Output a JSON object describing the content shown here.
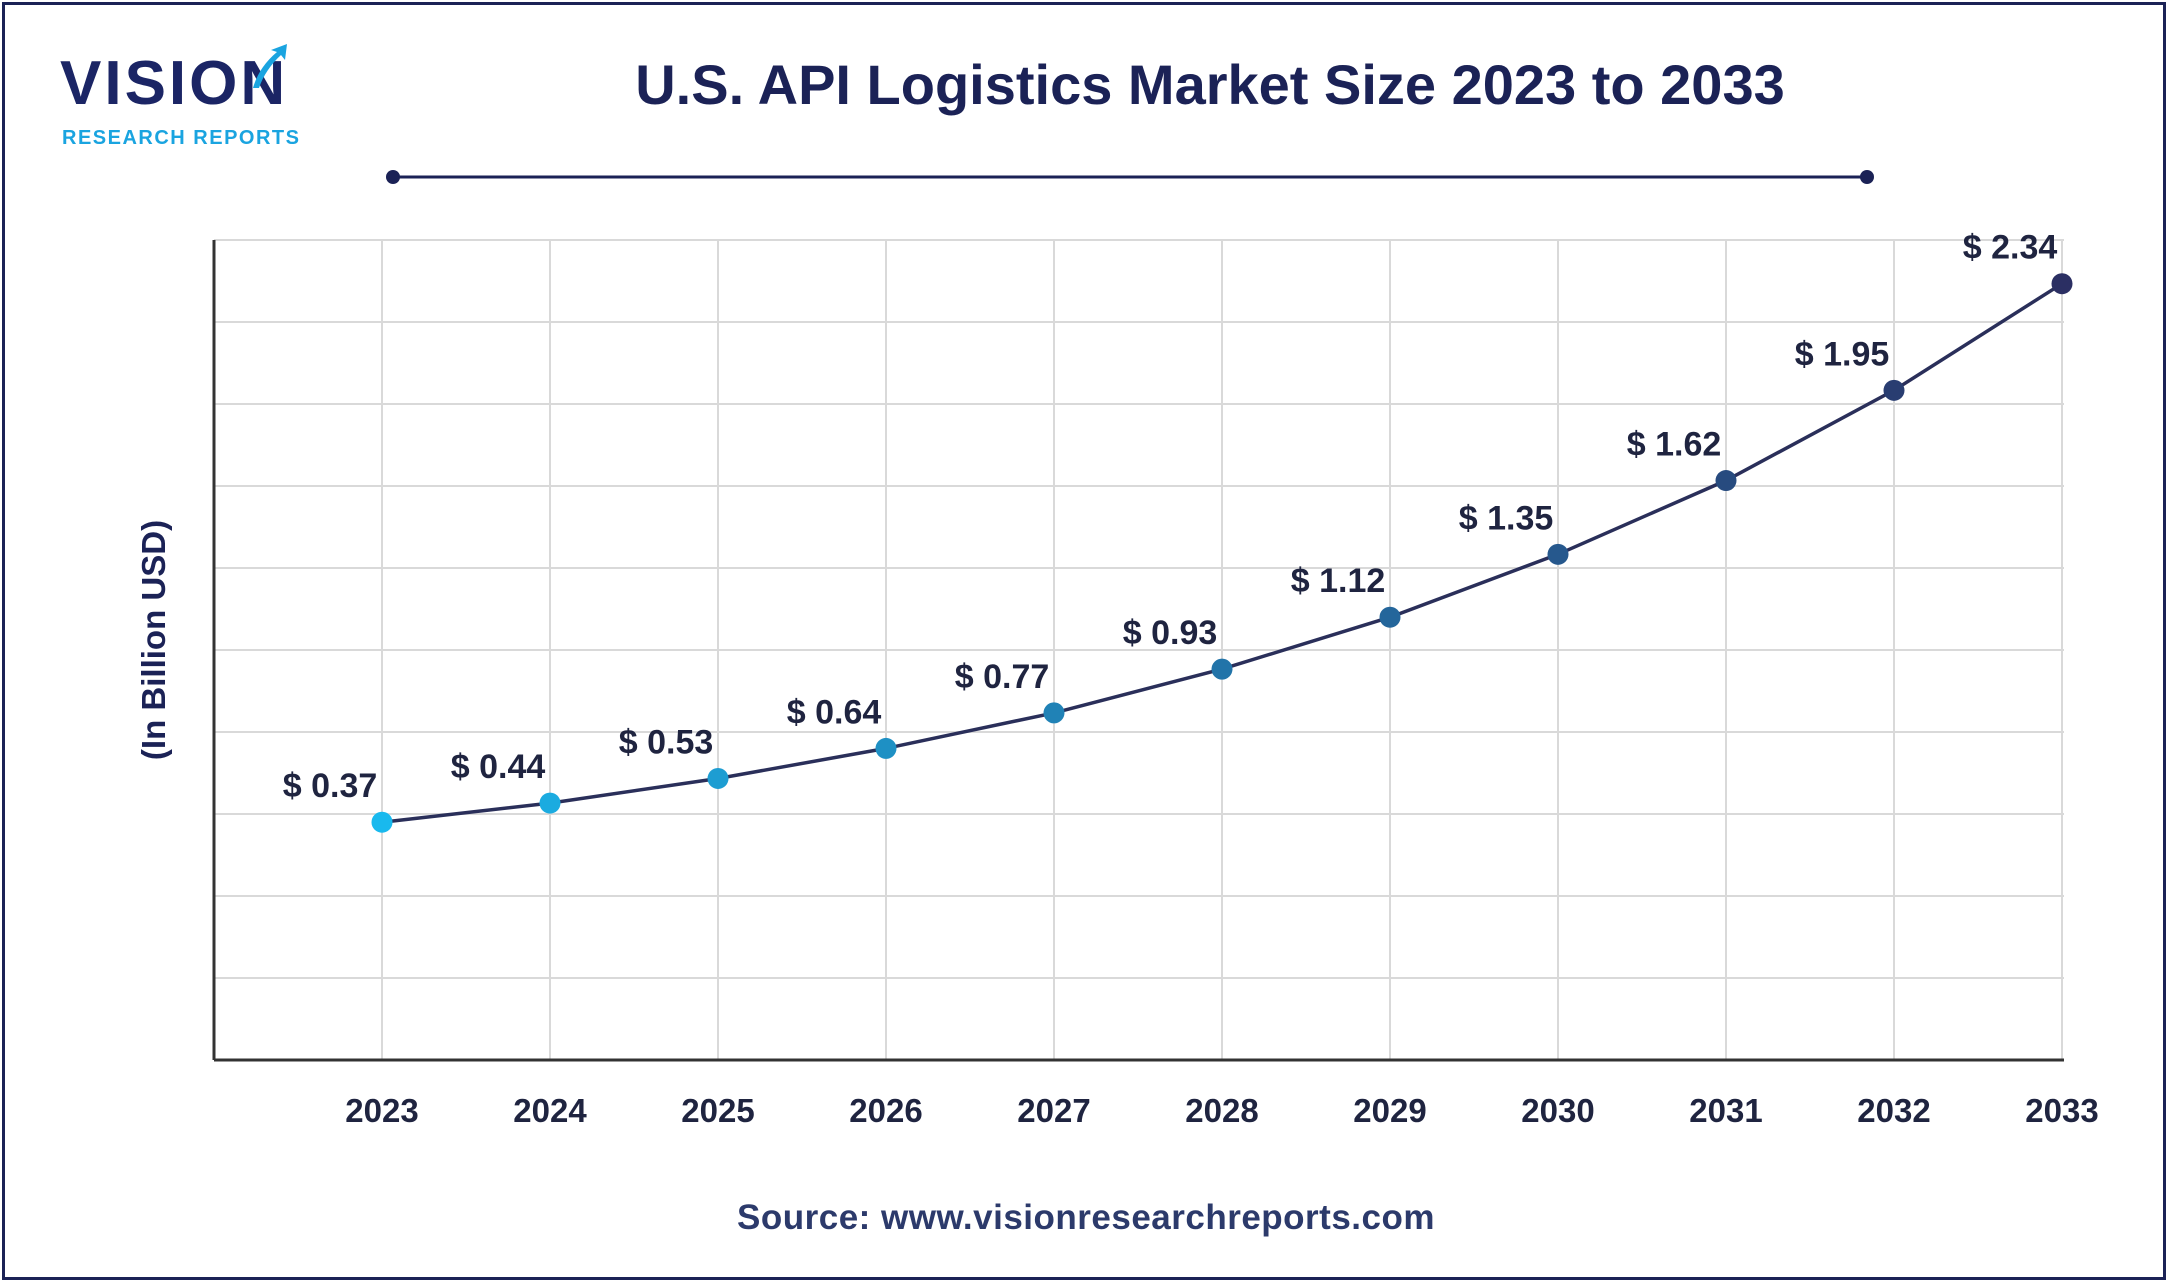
{
  "logo": {
    "word": "VISION",
    "sub": "RESEARCH REPORTS"
  },
  "source_text": "Source: www.visionresearchreports.com",
  "colors": {
    "frame": "#1b2256",
    "title": "#1b2256",
    "line": "#2a2f5a",
    "grid": "#d9d9d9",
    "axis": "#333333",
    "point_gradient_start": "#19b9ee",
    "point_gradient_end": "#2b2f63"
  },
  "chart_data": {
    "type": "line",
    "title": "U.S. API Logistics Market Size 2023 to 2033",
    "ylabel": "(In Billion USD)",
    "xlabel": "",
    "categories": [
      "2023",
      "2024",
      "2025",
      "2026",
      "2027",
      "2028",
      "2029",
      "2030",
      "2031",
      "2032",
      "2033"
    ],
    "series": [
      {
        "values": [
          0.37,
          0.44,
          0.53,
          0.64,
          0.77,
          0.93,
          1.12,
          1.35,
          1.62,
          1.95,
          2.34
        ],
        "labels": [
          "$ 0.37",
          "$ 0.44",
          "$ 0.53",
          "$ 0.64",
          "$ 0.77",
          "$ 0.93",
          "$ 1.12",
          "$ 1.35",
          "$ 1.62",
          "$ 1.95",
          "$ 2.34"
        ]
      }
    ],
    "ylim": [
      -0.5,
      2.5
    ],
    "grid": true,
    "legend": "none"
  }
}
